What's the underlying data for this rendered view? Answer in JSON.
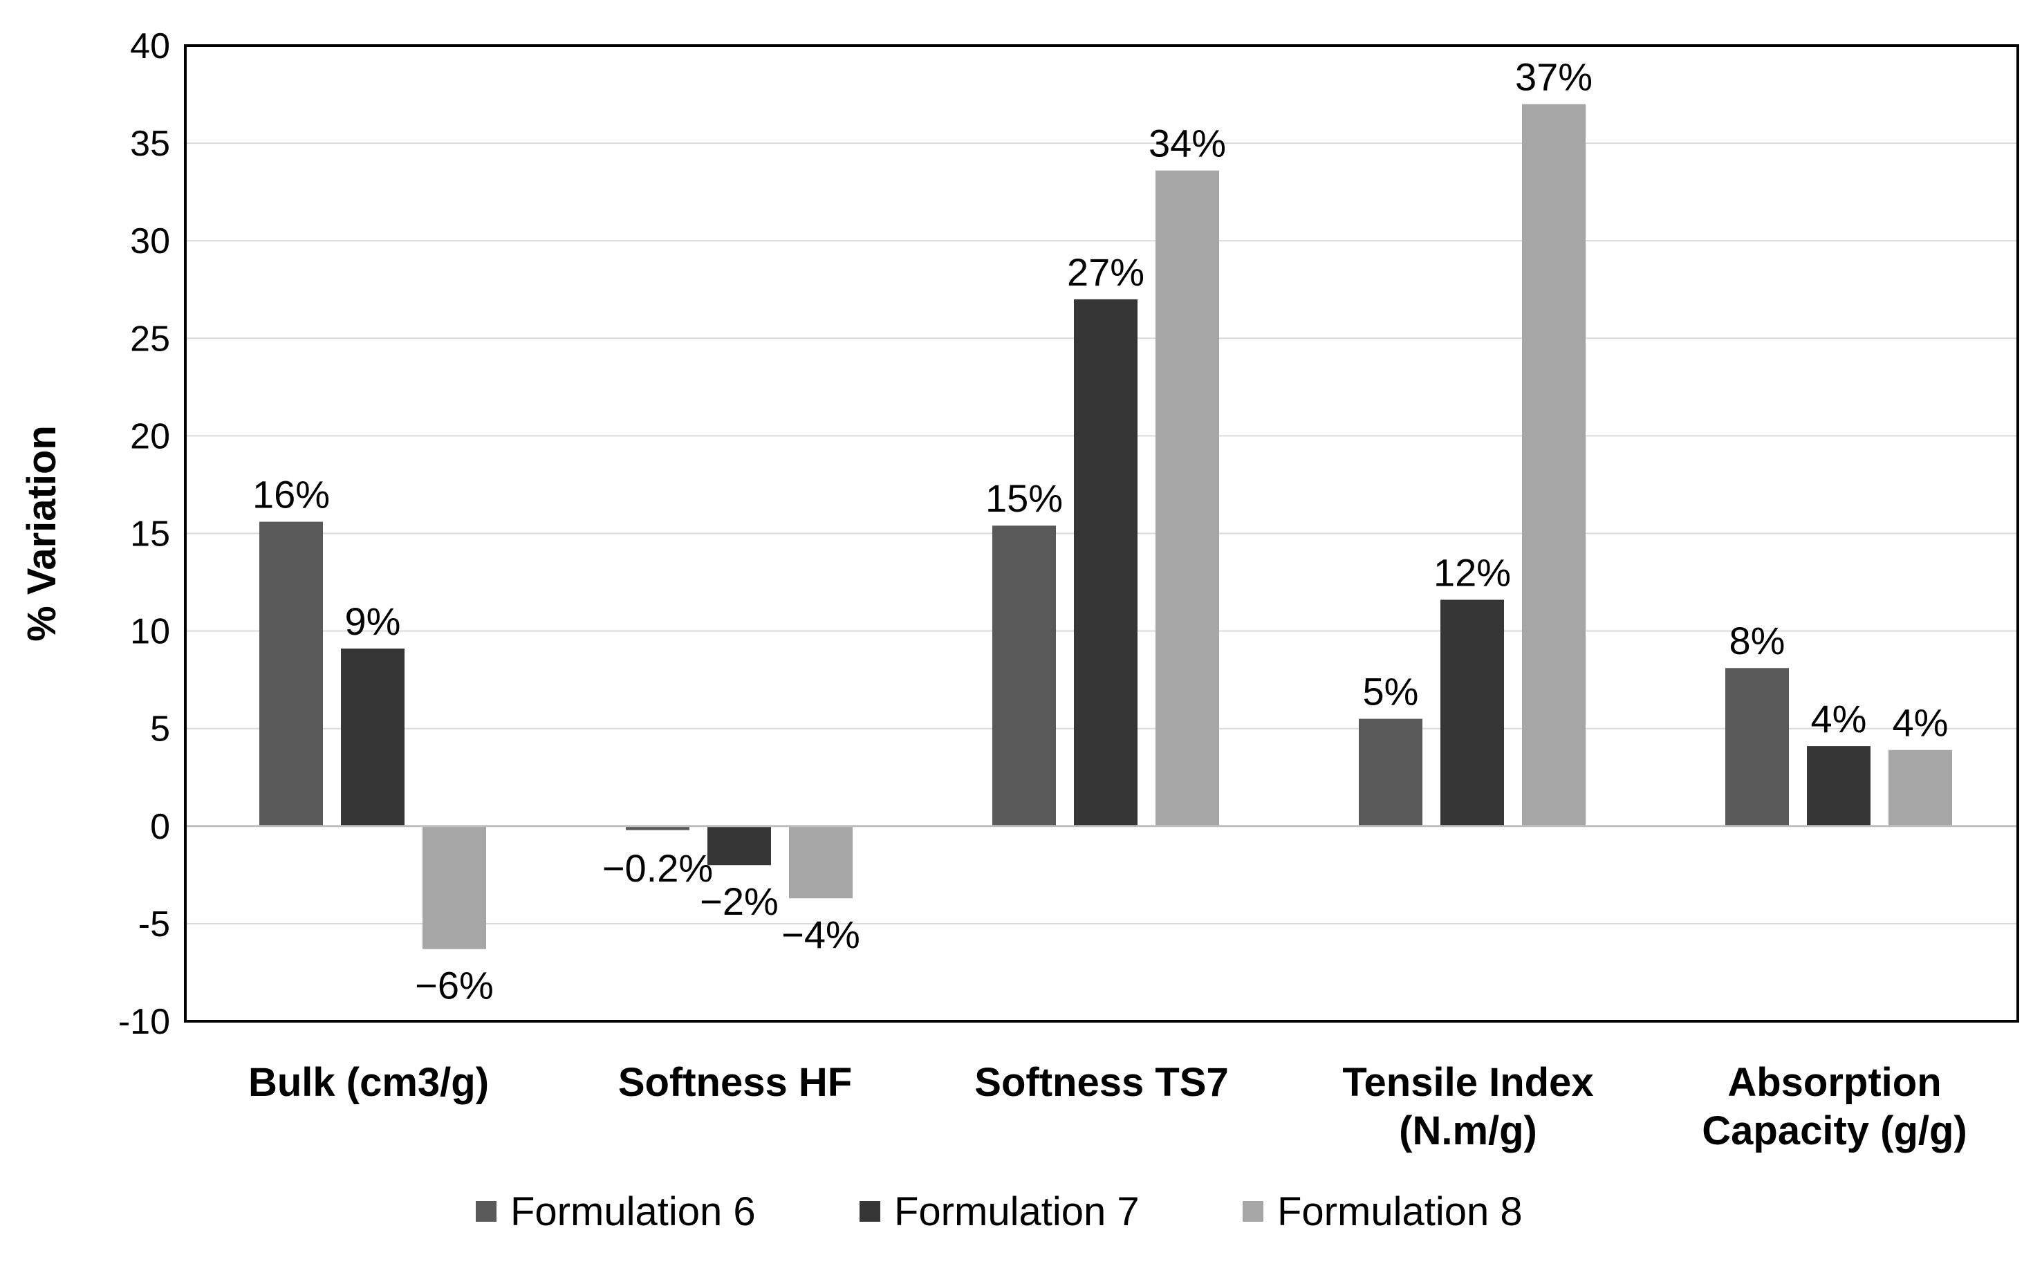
{
  "chart_data": {
    "type": "bar",
    "title": "",
    "xlabel": "",
    "ylabel": "% Variation",
    "ylim": [
      -10,
      40
    ],
    "yticks": [
      -10,
      -5,
      0,
      5,
      10,
      15,
      20,
      25,
      30,
      35,
      40
    ],
    "grid": true,
    "legend_position": "bottom",
    "categories": [
      [
        "Bulk (cm3/g)"
      ],
      [
        "Softness HF"
      ],
      [
        "Softness TS7"
      ],
      [
        "Tensile Index",
        "(N.m/g)"
      ],
      [
        "Absorption",
        "Capacity (g/g)"
      ]
    ],
    "series": [
      {
        "name": "Formulation 6",
        "color": "#595959",
        "values": [
          15.6,
          -0.2,
          15.4,
          5.5,
          8.1
        ],
        "labels": [
          "16%",
          "−0.2%",
          "15%",
          "5%",
          "8%"
        ]
      },
      {
        "name": "Formulation 7",
        "color": "#363636",
        "values": [
          9.1,
          -2.0,
          27.0,
          11.6,
          4.1
        ],
        "labels": [
          "9%",
          "−2%",
          "27%",
          "12%",
          "4%"
        ]
      },
      {
        "name": "Formulation 8",
        "color": "#a6a6a6",
        "values": [
          -6.3,
          -3.7,
          33.6,
          37.0,
          3.9
        ],
        "labels": [
          "−6%",
          "−4%",
          "34%",
          "37%",
          "4%"
        ]
      }
    ]
  }
}
